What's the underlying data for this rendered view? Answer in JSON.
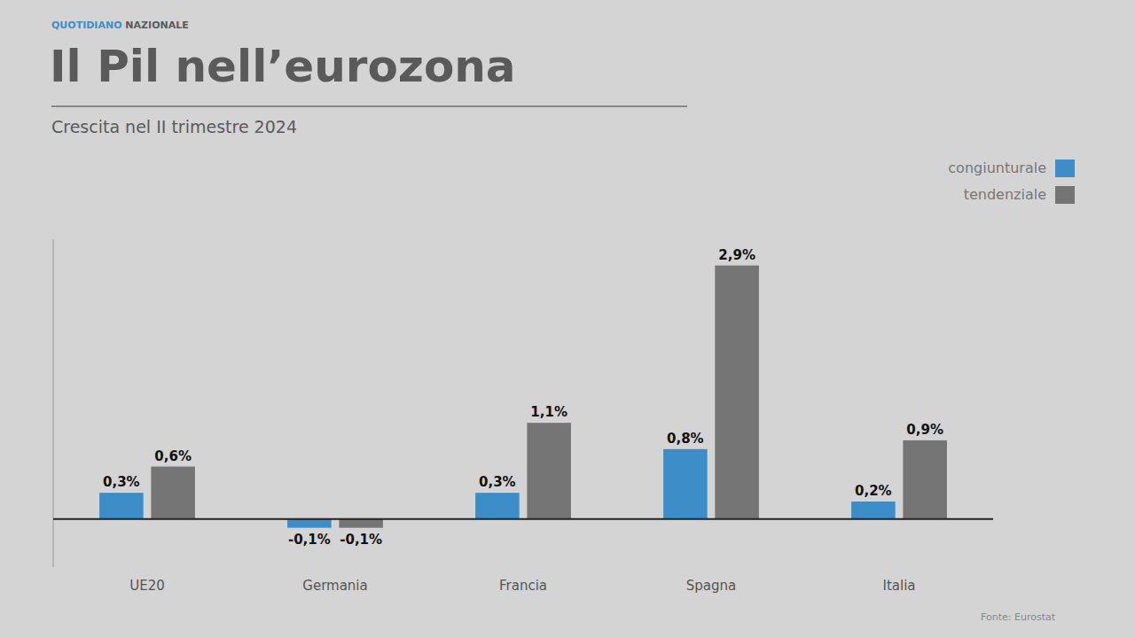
{
  "chart_data": {
    "type": "bar",
    "title": "Il Pil nell’eurozona",
    "subtitle": "Crescita nel II trimestre 2024",
    "header": [
      "QUOTIDIANO",
      "NAZIONALE"
    ],
    "source": "Fonte: Eurostat",
    "categories": [
      "UE20",
      "Germania",
      "Francia",
      "Spagna",
      "Italia"
    ],
    "series": [
      {
        "name": "congiunturale",
        "color": "#3d8ec8",
        "values": [
          0.3,
          -0.1,
          0.3,
          0.8,
          0.2
        ],
        "value_labels": [
          "0,3%",
          "-0,1%",
          "0,3%",
          "0,8%",
          "0,2%"
        ]
      },
      {
        "name": "tendenziale",
        "color": "#757575",
        "values": [
          0.6,
          -0.1,
          1.1,
          2.9,
          0.9
        ],
        "value_labels": [
          "0,6%",
          "-0,1%",
          "1,1%",
          "2,9%",
          "0,9%"
        ]
      }
    ],
    "ylim": [
      -0.55,
      3.2
    ],
    "tick_labels": false,
    "grid": false,
    "legend": "upper right",
    "data_labels": true
  }
}
